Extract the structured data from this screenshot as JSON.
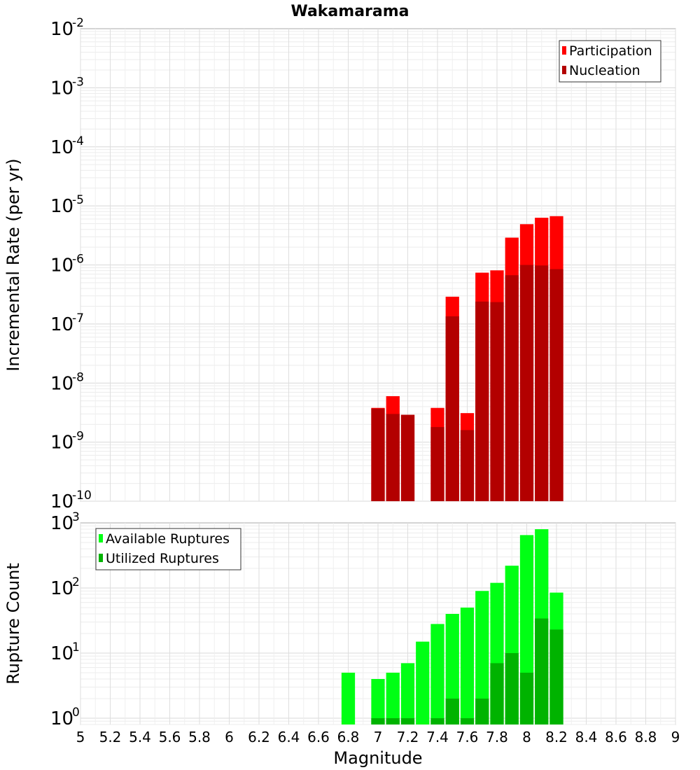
{
  "chart_data": [
    {
      "type": "bar",
      "title": "Wakamarama",
      "xlabel": "",
      "ylabel": "Incremental Rate (per yr)",
      "yscale": "log",
      "ylim": [
        1e-10,
        0.01
      ],
      "ytick_labels": [
        "10",
        "10",
        "10",
        "10",
        "10",
        "10",
        "10",
        "10",
        "10"
      ],
      "ytick_exponents": [
        "-10",
        "-9",
        "-8",
        "-7",
        "-6",
        "-5",
        "-4",
        "-3",
        "-2"
      ],
      "xlim": [
        5,
        9
      ],
      "grid": true,
      "legend_position": "top-right",
      "series": [
        {
          "name": "Participation",
          "color": "#ff0000",
          "x": [
            7.0,
            7.1,
            7.2,
            7.4,
            7.5,
            7.6,
            7.7,
            7.8,
            7.9,
            8.0,
            8.1,
            8.2
          ],
          "values": [
            3.8e-09,
            6e-09,
            2.9e-09,
            3.8e-09,
            2.9e-07,
            3.1e-09,
            7.4e-07,
            8.1e-07,
            2.9e-06,
            4.9e-06,
            6.3e-06,
            6.7e-06
          ]
        },
        {
          "name": "Nucleation",
          "color": "#b30000",
          "x": [
            7.0,
            7.1,
            7.2,
            7.4,
            7.5,
            7.6,
            7.7,
            7.8,
            7.9,
            8.0,
            8.1,
            8.2
          ],
          "values": [
            3.7e-09,
            3e-09,
            2.9e-09,
            1.8e-09,
            1.35e-07,
            1.6e-09,
            2.4e-07,
            2.35e-07,
            6.7e-07,
            1e-06,
            9.8e-07,
            8.5e-07
          ]
        }
      ]
    },
    {
      "type": "bar",
      "title": "",
      "xlabel": "Magnitude",
      "ylabel": "Rupture Count",
      "yscale": "log",
      "ylim": [
        0.8,
        1000
      ],
      "ytick_labels": [
        "10",
        "10",
        "10",
        "10"
      ],
      "ytick_exponents": [
        "0",
        "1",
        "2",
        "3"
      ],
      "xlim": [
        5,
        9
      ],
      "xtick_labels": [
        "5",
        "5.2",
        "5.4",
        "5.6",
        "5.8",
        "6",
        "6.2",
        "6.4",
        "6.6",
        "6.8",
        "7",
        "7.2",
        "7.4",
        "7.6",
        "7.8",
        "8",
        "8.2",
        "8.4",
        "8.6",
        "8.8",
        "9"
      ],
      "grid": true,
      "legend_position": "top-left",
      "series": [
        {
          "name": "Available Ruptures",
          "color": "#00ff14",
          "x": [
            6.8,
            7.0,
            7.1,
            7.2,
            7.3,
            7.4,
            7.5,
            7.6,
            7.7,
            7.8,
            7.9,
            8.0,
            8.1,
            8.2
          ],
          "values": [
            5,
            4,
            5,
            7,
            15,
            28,
            40,
            50,
            90,
            120,
            220,
            650,
            800,
            85
          ]
        },
        {
          "name": "Utilized Ruptures",
          "color": "#00b300",
          "x": [
            7.0,
            7.1,
            7.2,
            7.4,
            7.5,
            7.6,
            7.7,
            7.8,
            7.9,
            8.0,
            8.1,
            8.2
          ],
          "values": [
            1,
            1,
            1,
            1,
            2,
            1,
            2,
            7,
            10,
            5,
            34,
            23
          ]
        }
      ]
    }
  ]
}
